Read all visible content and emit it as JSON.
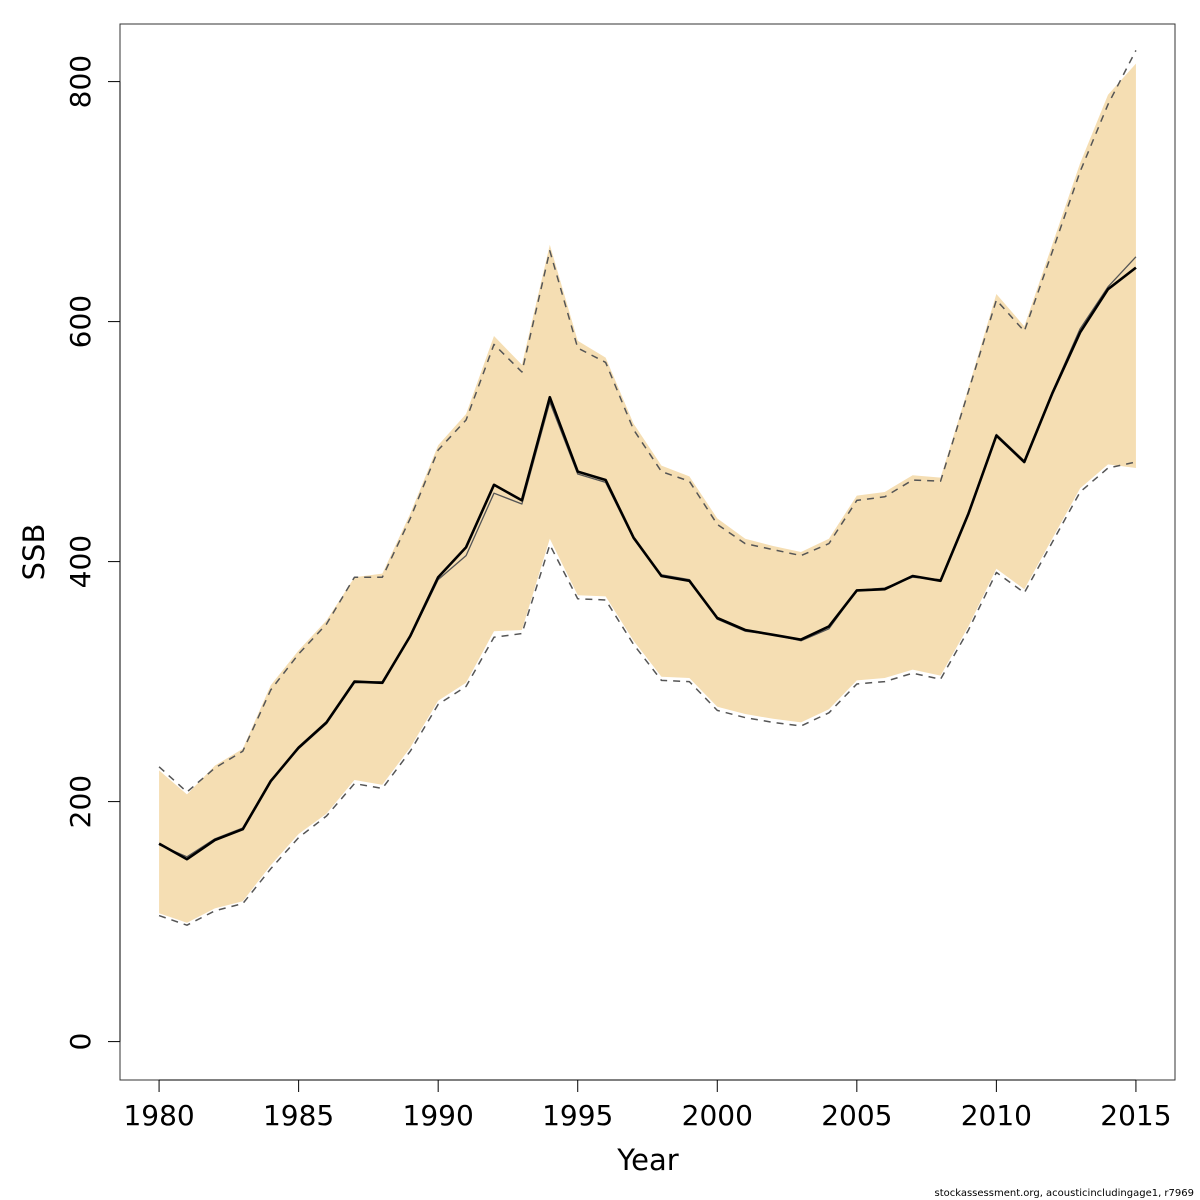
{
  "chart_data": {
    "type": "line",
    "xlabel": "Year",
    "ylabel": "SSB",
    "xlim": [
      1978.6,
      2016.4
    ],
    "ylim": [
      -32,
      848
    ],
    "x_ticks": [
      1980,
      1985,
      1990,
      1995,
      2000,
      2005,
      2010,
      2015
    ],
    "x_tick_labels": [
      "1980",
      "1985",
      "1990",
      "1995",
      "2000",
      "2005",
      "2010",
      "2015"
    ],
    "y_ticks": [
      0,
      200,
      400,
      600,
      800
    ],
    "y_tick_labels": [
      "0",
      "200",
      "400",
      "600",
      "800"
    ],
    "grid": false,
    "legend": "none",
    "x": [
      1980,
      1981,
      1982,
      1983,
      1984,
      1985,
      1986,
      1987,
      1988,
      1989,
      1990,
      1991,
      1992,
      1993,
      1994,
      1995,
      1996,
      1997,
      1998,
      1999,
      2000,
      2001,
      2002,
      2003,
      2004,
      2005,
      2006,
      2007,
      2008,
      2009,
      2010,
      2011,
      2012,
      2013,
      2014,
      2015
    ],
    "series": [
      {
        "role": "estimate",
        "color": "#000000",
        "values": [
          165,
          152,
          168,
          177,
          217,
          245,
          266,
          300,
          299,
          338,
          387,
          412,
          464,
          451,
          537,
          475,
          468,
          420,
          388,
          384,
          353,
          343,
          339,
          335,
          346,
          376,
          377,
          388,
          384,
          440,
          505,
          483,
          540,
          591,
          627,
          645
        ]
      },
      {
        "role": "median",
        "color": "#555555",
        "values": [
          164,
          154,
          169,
          178,
          218,
          244,
          265,
          299,
          300,
          337,
          385,
          405,
          457,
          448,
          533,
          473,
          466,
          419,
          389,
          385,
          352,
          342,
          339,
          334,
          344,
          376,
          378,
          387,
          385,
          441,
          506,
          484,
          541,
          594,
          629,
          654
        ]
      },
      {
        "role": "upper_interval",
        "color": "#555555",
        "style": "dashed",
        "values": [
          229,
          208,
          228,
          242,
          293,
          323,
          348,
          387,
          387,
          436,
          493,
          518,
          581,
          558,
          659,
          578,
          566,
          510,
          475,
          467,
          431,
          415,
          410,
          405,
          415,
          451,
          454,
          468,
          467,
          542,
          618,
          592,
          658,
          725,
          781,
          826
        ]
      },
      {
        "role": "lower_interval",
        "color": "#555555",
        "style": "dashed",
        "values": [
          105,
          97,
          109,
          115,
          144,
          170,
          188,
          215,
          211,
          242,
          281,
          296,
          337,
          340,
          414,
          369,
          368,
          331,
          301,
          300,
          276,
          270,
          266,
          263,
          274,
          298,
          300,
          307,
          302,
          343,
          391,
          374,
          416,
          458,
          478,
          483
        ]
      }
    ],
    "band": {
      "color": "#f5deb3",
      "upper": [
        226,
        206,
        230,
        244,
        297,
        326,
        351,
        387,
        390,
        440,
        497,
        523,
        588,
        564,
        664,
        584,
        570,
        515,
        480,
        471,
        436,
        419,
        413,
        408,
        419,
        455,
        458,
        472,
        470,
        545,
        623,
        596,
        664,
        732,
        789,
        815
      ],
      "lower": [
        107,
        99,
        111,
        117,
        147,
        173,
        190,
        218,
        214,
        245,
        284,
        299,
        342,
        343,
        419,
        372,
        371,
        334,
        304,
        303,
        279,
        273,
        269,
        266,
        277,
        301,
        303,
        310,
        305,
        346,
        394,
        377,
        419,
        461,
        481,
        478
      ]
    }
  },
  "footer": {
    "note": "stockassessment.org, acousticincludingage1, r7969"
  }
}
